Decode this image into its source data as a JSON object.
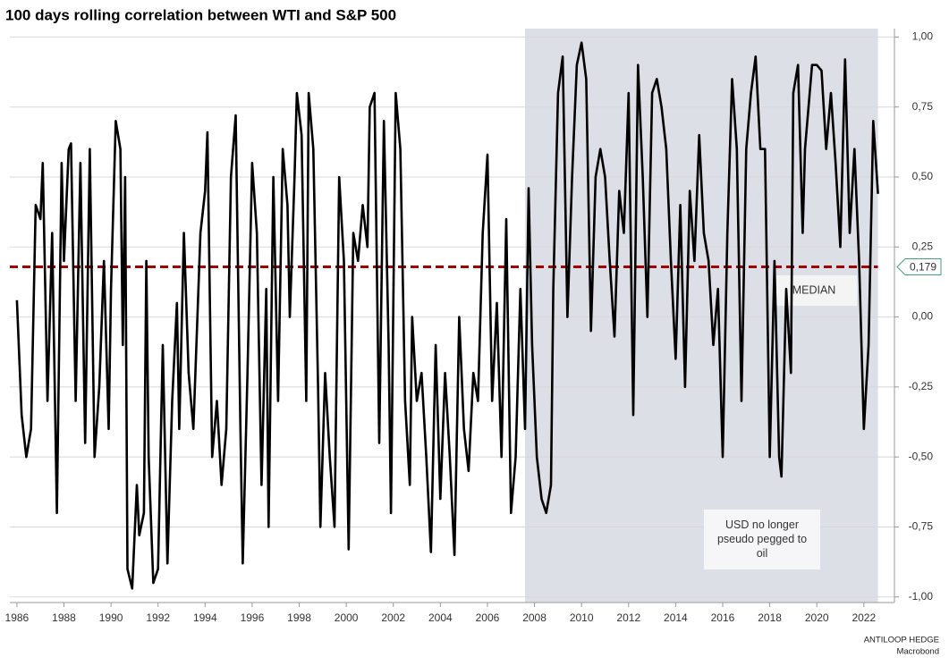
{
  "chart_data": {
    "type": "line",
    "title": "100 days rolling correlation between WTI and S&P 500",
    "x": [
      1986.0,
      1986.2,
      1986.4,
      1986.6,
      1986.8,
      1987.0,
      1987.1,
      1987.3,
      1987.5,
      1987.7,
      1987.9,
      1988.0,
      1988.2,
      1988.3,
      1988.5,
      1988.7,
      1988.9,
      1989.1,
      1989.3,
      1989.5,
      1989.7,
      1989.9,
      1990.0,
      1990.2,
      1990.4,
      1990.5,
      1990.6,
      1990.7,
      1990.9,
      1991.1,
      1991.2,
      1991.4,
      1991.5,
      1991.6,
      1991.8,
      1992.0,
      1992.2,
      1992.4,
      1992.6,
      1992.8,
      1992.9,
      1993.1,
      1993.3,
      1993.5,
      1993.8,
      1994.0,
      1994.1,
      1994.3,
      1994.5,
      1994.7,
      1994.9,
      1995.1,
      1995.3,
      1995.5,
      1995.6,
      1995.8,
      1996.0,
      1996.2,
      1996.4,
      1996.6,
      1996.7,
      1996.9,
      1997.1,
      1997.3,
      1997.5,
      1997.6,
      1997.8,
      1997.9,
      1998.1,
      1998.3,
      1998.4,
      1998.6,
      1998.8,
      1998.9,
      1999.1,
      1999.3,
      1999.5,
      1999.7,
      1999.9,
      2000.1,
      2000.3,
      2000.5,
      2000.7,
      2000.9,
      2001.0,
      2001.2,
      2001.4,
      2001.6,
      2001.8,
      2001.9,
      2002.1,
      2002.3,
      2002.5,
      2002.7,
      2002.8,
      2003.0,
      2003.2,
      2003.4,
      2003.6,
      2003.8,
      2004.0,
      2004.2,
      2004.4,
      2004.6,
      2004.8,
      2005.0,
      2005.2,
      2005.4,
      2005.6,
      2005.8,
      2006.0,
      2006.2,
      2006.4,
      2006.6,
      2006.8,
      2007.0,
      2007.2,
      2007.4,
      2007.6,
      2007.75,
      2007.9,
      2008.1,
      2008.3,
      2008.5,
      2008.7,
      2008.8,
      2009.0,
      2009.2,
      2009.4,
      2009.6,
      2009.8,
      2010.0,
      2010.2,
      2010.4,
      2010.6,
      2010.8,
      2011.0,
      2011.2,
      2011.4,
      2011.6,
      2011.8,
      2012.0,
      2012.2,
      2012.4,
      2012.6,
      2012.8,
      2013.0,
      2013.2,
      2013.4,
      2013.6,
      2013.8,
      2014.0,
      2014.2,
      2014.4,
      2014.6,
      2014.8,
      2015.0,
      2015.2,
      2015.4,
      2015.6,
      2015.8,
      2016.0,
      2016.2,
      2016.4,
      2016.6,
      2016.8,
      2017.0,
      2017.2,
      2017.4,
      2017.6,
      2017.8,
      2018.0,
      2018.2,
      2018.4,
      2018.5,
      2018.7,
      2018.9,
      2019.0,
      2019.2,
      2019.4,
      2019.5,
      2019.8,
      2020.0,
      2020.2,
      2020.4,
      2020.6,
      2020.8,
      2021.0,
      2021.2,
      2021.4,
      2021.6,
      2021.8,
      2022.0,
      2022.2,
      2022.4,
      2022.6
    ],
    "series": [
      {
        "name": "100 days rolling correlation",
        "color": "#000000",
        "values": [
          0.06,
          -0.35,
          -0.5,
          -0.4,
          0.4,
          0.35,
          0.55,
          -0.3,
          0.3,
          -0.7,
          0.55,
          0.2,
          0.6,
          0.62,
          -0.3,
          0.55,
          -0.45,
          0.6,
          -0.5,
          -0.25,
          0.2,
          -0.4,
          0.1,
          0.7,
          0.6,
          -0.1,
          0.5,
          -0.9,
          -0.97,
          -0.6,
          -0.78,
          -0.7,
          0.2,
          -0.5,
          -0.95,
          -0.9,
          -0.1,
          -0.88,
          -0.3,
          0.05,
          -0.4,
          0.3,
          -0.2,
          -0.4,
          0.3,
          0.45,
          0.66,
          -0.5,
          -0.3,
          -0.6,
          -0.4,
          0.5,
          0.72,
          -0.4,
          -0.88,
          -0.2,
          0.55,
          0.3,
          -0.6,
          0.1,
          -0.75,
          0.5,
          -0.3,
          0.6,
          0.4,
          0.0,
          0.5,
          0.8,
          0.65,
          -0.3,
          0.8,
          0.6,
          -0.25,
          -0.75,
          -0.2,
          -0.5,
          -0.75,
          0.5,
          0.2,
          -0.83,
          0.3,
          0.2,
          0.4,
          0.25,
          0.75,
          0.8,
          -0.45,
          0.7,
          -0.1,
          -0.7,
          0.8,
          0.6,
          -0.3,
          -0.6,
          0.0,
          -0.3,
          -0.2,
          -0.5,
          -0.84,
          -0.1,
          -0.65,
          -0.2,
          -0.5,
          -0.85,
          0.0,
          -0.4,
          -0.55,
          -0.2,
          -0.3,
          0.3,
          0.58,
          -0.3,
          0.05,
          -0.5,
          0.35,
          -0.7,
          -0.5,
          0.1,
          -0.4,
          0.46,
          -0.1,
          -0.5,
          -0.65,
          -0.7,
          -0.6,
          0.1,
          0.8,
          0.93,
          0.0,
          0.5,
          0.9,
          0.98,
          0.85,
          -0.05,
          0.5,
          0.6,
          0.5,
          0.2,
          -0.07,
          0.45,
          0.3,
          0.8,
          -0.35,
          0.9,
          0.5,
          0.0,
          0.8,
          0.85,
          0.75,
          0.6,
          0.2,
          -0.15,
          0.4,
          -0.25,
          0.45,
          0.2,
          0.65,
          0.3,
          0.2,
          -0.1,
          0.1,
          -0.5,
          0.3,
          0.85,
          0.6,
          -0.3,
          0.6,
          0.8,
          0.93,
          0.6,
          0.6,
          -0.5,
          0.2,
          -0.5,
          -0.57,
          0.1,
          -0.2,
          0.8,
          0.9,
          0.3,
          0.6,
          0.9,
          0.9,
          0.88,
          0.6,
          0.8,
          0.55,
          0.25,
          0.92,
          0.3,
          0.6,
          0.2,
          -0.4,
          -0.1,
          0.7,
          0.44
        ]
      }
    ],
    "median": {
      "value": 0.179,
      "label": "0,179",
      "name": "MEDIAN",
      "color": "#a00000"
    },
    "shade": {
      "range": [
        2007.6,
        2022.6
      ],
      "label": "USD no longer pseudo pegged to oil",
      "color": "#dcdfe6"
    },
    "xlim": [
      1985.7,
      2023.3
    ],
    "xticks": [
      1986,
      1988,
      1990,
      1992,
      1994,
      1996,
      1998,
      2000,
      2002,
      2004,
      2006,
      2008,
      2010,
      2012,
      2014,
      2016,
      2018,
      2020,
      2022
    ],
    "ylim": [
      -1.02,
      1.03
    ],
    "yticks": [
      {
        "value": -1,
        "label": "-1,00"
      },
      {
        "value": -0.75,
        "label": "-0,75"
      },
      {
        "value": -0.5,
        "label": "-0,50"
      },
      {
        "value": -0.25,
        "label": "-0,25"
      },
      {
        "value": 0,
        "label": "0,00"
      },
      {
        "value": 0.25,
        "label": "0,25"
      },
      {
        "value": 0.5,
        "label": "0,50"
      },
      {
        "value": 0.75,
        "label": "0,75"
      },
      {
        "value": 1,
        "label": "1,00"
      }
    ],
    "grid": true,
    "source": [
      "ANTILOOP HEDGE",
      "Macrobond"
    ]
  }
}
